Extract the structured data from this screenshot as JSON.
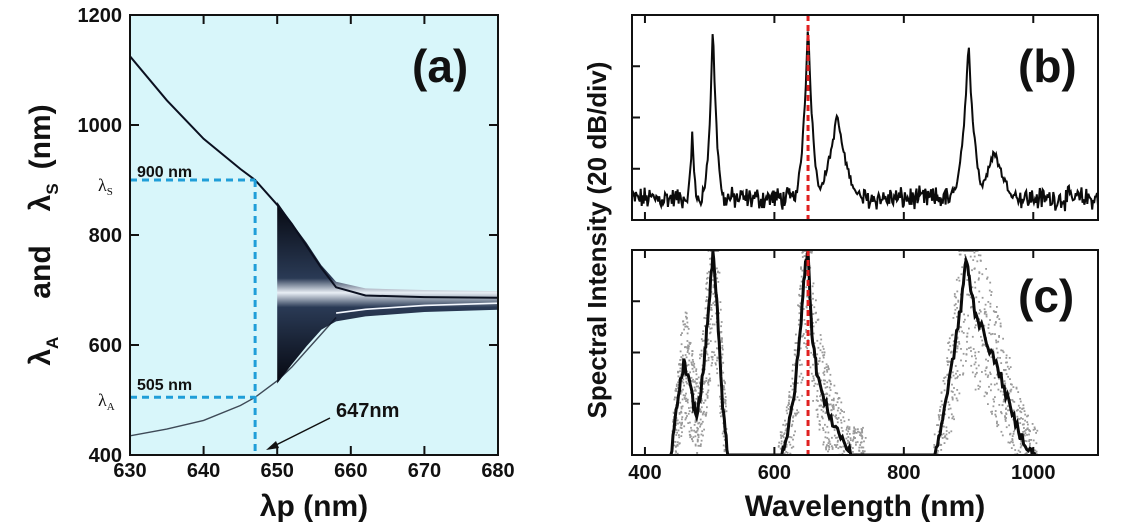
{
  "chart_data": [
    {
      "panel": "(a)",
      "type": "line",
      "xlabel": "λp (nm)",
      "ylabel_lambda_a": "λ",
      "ylabel_sub_a": "A",
      "ylabel_and": "and",
      "ylabel_lambda_s": "λ",
      "ylabel_sub_s": "S",
      "ylabel_unit": "(nm)",
      "xlim": [
        630,
        680
      ],
      "ylim": [
        400,
        1200
      ],
      "x_ticks": [
        630,
        640,
        650,
        660,
        670,
        680
      ],
      "y_ticks": [
        400,
        600,
        800,
        1000,
        1200
      ],
      "background": "#d8f6fa",
      "annotations": {
        "lambda_s_label": "900 nm",
        "lambda_a_label": "505 nm",
        "pump_label": "647nm",
        "lambda_s_value": 900,
        "lambda_a_value": 505,
        "pump_value": 647,
        "lambda_s_axis_symbol": "λ",
        "lambda_s_axis_sub": "S",
        "lambda_a_axis_symbol": "λ",
        "lambda_a_axis_sub": "A"
      },
      "series": [
        {
          "x": [
            630,
            635,
            640,
            645,
            647,
            650,
            652,
            654,
            656,
            658,
            662,
            670,
            680
          ],
          "y": [
            1125,
            1045,
            975,
            920,
            900,
            855,
            820,
            780,
            740,
            705,
            690,
            687,
            686
          ]
        },
        {
          "x": [
            630,
            635,
            640,
            645,
            647,
            650,
            652,
            654,
            656,
            658
          ],
          "y": [
            435,
            447,
            463,
            490,
            505,
            535,
            560,
            590,
            620,
            650
          ]
        }
      ],
      "gain_band": {
        "x": [
          650,
          652,
          654,
          656,
          658,
          662,
          670,
          680
        ],
        "upper": [
          860,
          822,
          786,
          745,
          715,
          703,
          700,
          698
        ],
        "lower": [
          530,
          565,
          598,
          628,
          643,
          652,
          660,
          664
        ],
        "center": [
          680,
          680,
          680,
          680,
          658,
          665,
          672,
          676
        ]
      }
    },
    {
      "panel": "(b)",
      "type": "line",
      "xlim": [
        380,
        1100
      ],
      "pump_marker_x": 652,
      "pump_marker_color": "#e02020",
      "peaks": [
        {
          "center": 473,
          "height": 0.43,
          "width": 5
        },
        {
          "center": 505,
          "height": 0.98,
          "width": 7
        },
        {
          "center": 652,
          "height": 0.99,
          "width": 9
        },
        {
          "center": 697,
          "height": 0.52,
          "width": 22
        },
        {
          "center": 900,
          "height": 0.86,
          "width": 12
        },
        {
          "center": 940,
          "height": 0.34,
          "width": 28
        }
      ]
    },
    {
      "panel": "(c)",
      "type": "line",
      "xlim": [
        380,
        1100
      ],
      "x_ticks": [
        400,
        600,
        800,
        1000
      ],
      "xlabel": "Wavelength (nm)",
      "pump_marker_x": 652,
      "pump_marker_color": "#e02020",
      "shared_ylabel": "Spectral Intensity (20 dB/div)",
      "lobes": [
        {
          "xmin": 440,
          "xmax": 525
        },
        {
          "xmin": 605,
          "xmax": 740
        },
        {
          "xmin": 845,
          "xmax": 1005
        }
      ],
      "mean_curve": {
        "x": [
          440,
          450,
          460,
          470,
          480,
          490,
          498,
          505,
          512,
          520,
          528,
          610,
          620,
          630,
          640,
          648,
          652,
          658,
          665,
          675,
          690,
          705,
          718,
          848,
          860,
          875,
          888,
          896,
          902,
          910,
          920,
          935,
          950,
          965,
          980,
          995,
          1005
        ],
        "y": [
          0.0,
          0.25,
          0.45,
          0.33,
          0.18,
          0.4,
          0.7,
          0.98,
          0.7,
          0.25,
          0.0,
          0.0,
          0.1,
          0.28,
          0.6,
          0.95,
          0.98,
          0.6,
          0.42,
          0.28,
          0.16,
          0.08,
          0.0,
          0.0,
          0.18,
          0.45,
          0.72,
          0.96,
          0.84,
          0.7,
          0.62,
          0.5,
          0.38,
          0.22,
          0.1,
          0.02,
          0.0
        ]
      }
    }
  ],
  "colors": {
    "panel_a_bg": "#d8f6fa",
    "dashed_blue": "#1f9ed8",
    "red_marker": "#e02020",
    "curve": "#0b1020",
    "scatter_gray": "#9a9a9a"
  }
}
